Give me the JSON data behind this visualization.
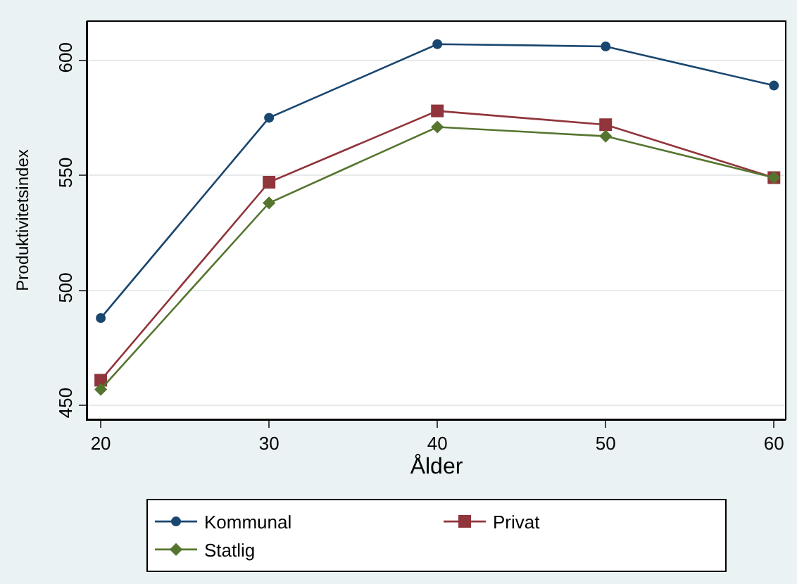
{
  "chart_data": {
    "type": "line",
    "xlabel": "Ålder",
    "ylabel": "Produktivitetsindex",
    "x": [
      20,
      30,
      40,
      50,
      60
    ],
    "xlim": [
      19.2,
      60.7
    ],
    "xticks": [
      20,
      30,
      40,
      50,
      60
    ],
    "ylim": [
      444,
      617
    ],
    "yticks": [
      450,
      500,
      550,
      600
    ],
    "grid": "y",
    "legend": "bottom",
    "series": [
      {
        "name": "Kommunal",
        "color": "#1a476f",
        "marker": "circle",
        "values": [
          488,
          575,
          607,
          606,
          589
        ]
      },
      {
        "name": "Privat",
        "color": "#90353b",
        "marker": "square",
        "values": [
          461,
          547,
          578,
          572,
          549
        ]
      },
      {
        "name": "Statlig",
        "color": "#55752f",
        "marker": "diamond",
        "values": [
          457,
          538,
          571,
          567,
          549
        ]
      }
    ]
  }
}
